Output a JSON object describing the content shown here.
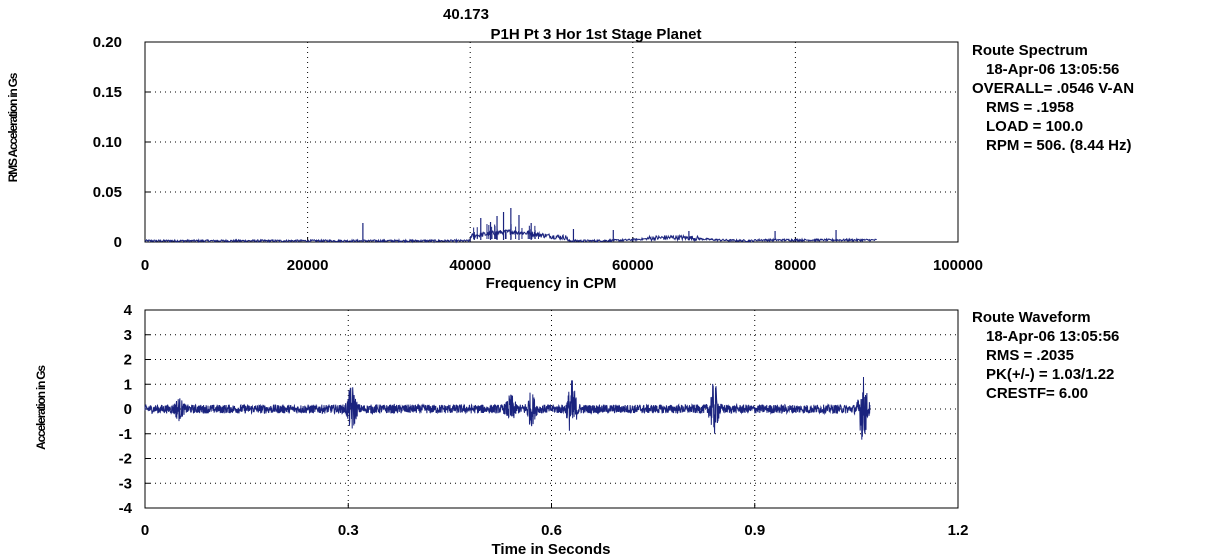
{
  "header": {
    "top_number": "40.173",
    "title": "P1H    Pt 3 Hor 1st Stage Planet"
  },
  "colors": {
    "trace": "#1a237e",
    "axis": "#000000",
    "background": "#ffffff"
  },
  "spectrum_info": [
    "Route Spectrum",
    "18-Apr-06  13:05:56",
    "OVERALL= .0546 V-AN",
    "RMS =  .1958",
    "LOAD = 100.0",
    "RPM = 506. (8.44 Hz)"
  ],
  "waveform_info": [
    "Route Waveform",
    "18-Apr-06  13:05:56",
    "RMS =  .2035",
    "PK(+/-) = 1.03/1.22",
    "CRESTF= 6.00"
  ],
  "chart_data": [
    {
      "type": "line",
      "ylabel": "RMS Acceleration in Gs",
      "xlabel": "Frequency in CPM",
      "xlim": [
        0,
        100000
      ],
      "ylim": [
        0,
        0.2
      ],
      "xticks": [
        "0",
        "20000",
        "40000",
        "60000",
        "80000",
        "100000"
      ],
      "yticks": [
        "0",
        "0.05",
        "0.10",
        "0.15",
        "0.20"
      ],
      "grid": true,
      "x_data_range": [
        0,
        90000
      ],
      "baseline": 0.001,
      "peaks": [
        {
          "x": 26800,
          "y": 0.019
        },
        {
          "x": 40500,
          "y": 0.01
        },
        {
          "x": 41300,
          "y": 0.024
        },
        {
          "x": 42500,
          "y": 0.02
        },
        {
          "x": 43300,
          "y": 0.026
        },
        {
          "x": 44100,
          "y": 0.03
        },
        {
          "x": 45000,
          "y": 0.034
        },
        {
          "x": 46000,
          "y": 0.027
        },
        {
          "x": 47500,
          "y": 0.019
        },
        {
          "x": 52700,
          "y": 0.013
        },
        {
          "x": 57600,
          "y": 0.012
        },
        {
          "x": 66900,
          "y": 0.011
        },
        {
          "x": 77500,
          "y": 0.011
        },
        {
          "x": 85000,
          "y": 0.012
        }
      ]
    },
    {
      "type": "line",
      "ylabel": "Acceleration in Gs",
      "xlabel": "Time in Seconds",
      "xlim": [
        0,
        1.2
      ],
      "ylim": [
        -4,
        4
      ],
      "xticks": [
        "0",
        "0.3",
        "0.6",
        "0.9",
        "1.2"
      ],
      "yticks": [
        "4",
        "3",
        "2",
        "1",
        "0",
        "-1",
        "-2",
        "-3",
        "-4"
      ],
      "grid": true,
      "x_data_range": [
        0,
        1.07
      ],
      "noise_amplitude": 0.18,
      "bursts": [
        {
          "t": 0.05,
          "amp": 0.32
        },
        {
          "t": 0.305,
          "amp": 0.85
        },
        {
          "t": 0.54,
          "amp": 0.45
        },
        {
          "t": 0.57,
          "amp": 0.55
        },
        {
          "t": 0.63,
          "amp": 1.05
        },
        {
          "t": 0.84,
          "amp": 0.95
        },
        {
          "t": 1.06,
          "amp": 1.2
        }
      ]
    }
  ]
}
